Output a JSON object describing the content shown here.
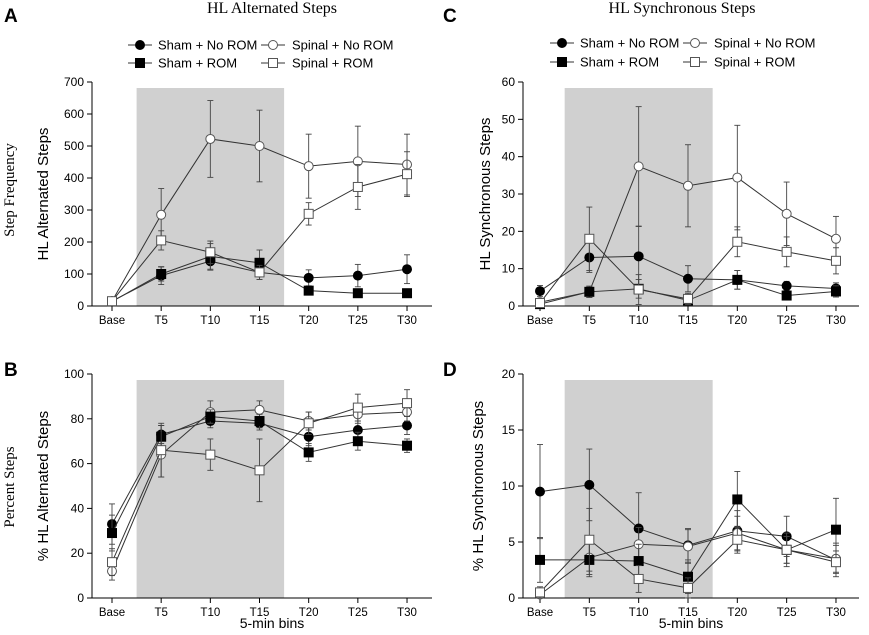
{
  "figure": {
    "column_titles": [
      "HL Alternated Steps",
      "HL Synchronous Steps"
    ],
    "row_labels": [
      "Step Frequency",
      "Percent Steps"
    ],
    "xlabel": "5-min bins"
  },
  "legend": {
    "entries": [
      {
        "name": "Sham + No ROM",
        "marker": "circle",
        "fill": "#000000"
      },
      {
        "name": "Spinal + No ROM",
        "marker": "circle",
        "fill": "#ffffff"
      },
      {
        "name": "Sham + ROM",
        "marker": "square",
        "fill": "#000000"
      },
      {
        "name": "Spinal + ROM",
        "marker": "square",
        "fill": "#ffffff"
      }
    ]
  },
  "colors": {
    "shade": "#d0d0d0",
    "line": "#333333",
    "marker_stroke": "#555555"
  },
  "chart_data": [
    {
      "id": "A",
      "type": "line",
      "panel_label": "A",
      "ylabel": "HL Alternated Steps",
      "xlabel": "",
      "ylim": [
        0,
        700
      ],
      "yticks": [
        0,
        100,
        200,
        300,
        400,
        500,
        600,
        700
      ],
      "categories": [
        "Base",
        "T5",
        "T10",
        "T15",
        "T20",
        "T25",
        "T30"
      ],
      "shaded": [
        "T5",
        "T15"
      ],
      "series": [
        {
          "name": "Sham + No ROM",
          "values": [
            15,
            95,
            140,
            105,
            88,
            95,
            115
          ],
          "errors": [
            5,
            28,
            28,
            22,
            25,
            35,
            45
          ]
        },
        {
          "name": "Spinal + No ROM",
          "values": [
            15,
            285,
            522,
            500,
            437,
            452,
            442
          ],
          "errors": [
            5,
            82,
            120,
            112,
            100,
            110,
            95
          ]
        },
        {
          "name": "Sham + ROM",
          "values": [
            14,
            100,
            155,
            135,
            48,
            40,
            40
          ],
          "errors": [
            4,
            22,
            40,
            40,
            8,
            6,
            6
          ]
        },
        {
          "name": "Spinal + ROM",
          "values": [
            15,
            205,
            168,
            105,
            288,
            372,
            412
          ],
          "errors": [
            5,
            30,
            35,
            22,
            35,
            70,
            70
          ]
        }
      ]
    },
    {
      "id": "C",
      "type": "line",
      "panel_label": "C",
      "ylabel": "HL Synchronous Steps",
      "xlabel": "",
      "ylim": [
        0,
        60
      ],
      "yticks": [
        0,
        10,
        20,
        30,
        40,
        50,
        60
      ],
      "categories": [
        "Base",
        "T5",
        "T10",
        "T15",
        "T20",
        "T25",
        "T30"
      ],
      "shaded": [
        "T5",
        "T15"
      ],
      "series": [
        {
          "name": "Sham + No ROM",
          "values": [
            4,
            13,
            13.3,
            7.3,
            7,
            5.4,
            4.7
          ],
          "errors": [
            1.5,
            4,
            8,
            3.5,
            2.5,
            1.2,
            1.5
          ]
        },
        {
          "name": "Spinal + No ROM",
          "values": [
            1,
            3.8,
            37.4,
            32.2,
            34.4,
            24.7,
            18
          ],
          "errors": [
            0.5,
            1.5,
            16,
            11,
            14,
            8.5,
            6
          ]
        },
        {
          "name": "Sham + ROM",
          "values": [
            0.5,
            3.8,
            4.6,
            1.5,
            7,
            2.8,
            3.9
          ],
          "errors": [
            0.3,
            1.5,
            2.5,
            1,
            2.5,
            1,
            1.5
          ]
        },
        {
          "name": "Spinal + ROM",
          "values": [
            0.8,
            18,
            4.4,
            1.9,
            17.2,
            14.5,
            12.1
          ],
          "errors": [
            0.4,
            8.5,
            4,
            1.5,
            4,
            4,
            3.5
          ]
        }
      ]
    },
    {
      "id": "B",
      "type": "line",
      "panel_label": "B",
      "ylabel": "% HL Alternated Steps",
      "xlabel": "5-min bins",
      "ylim": [
        0,
        100
      ],
      "yticks": [
        0,
        20,
        40,
        60,
        80,
        100
      ],
      "categories": [
        "Base",
        "T5",
        "T10",
        "T15",
        "T20",
        "T25",
        "T30"
      ],
      "shaded": [
        "T5",
        "T15"
      ],
      "series": [
        {
          "name": "Sham + No ROM",
          "values": [
            33,
            73,
            79,
            78,
            72,
            75,
            77
          ],
          "errors": [
            9,
            4,
            3,
            3,
            4,
            4,
            4
          ]
        },
        {
          "name": "Spinal + No ROM",
          "values": [
            12,
            64,
            83,
            84,
            79,
            82,
            83
          ],
          "errors": [
            4,
            10,
            5,
            4,
            4,
            4,
            4
          ]
        },
        {
          "name": "Sham + ROM",
          "values": [
            29,
            72,
            81,
            79,
            65,
            70,
            68
          ],
          "errors": [
            8,
            5,
            3,
            3,
            4,
            4,
            3
          ]
        },
        {
          "name": "Spinal + ROM",
          "values": [
            16,
            66,
            64,
            57,
            78,
            85,
            87
          ],
          "errors": [
            6,
            12,
            7,
            14,
            5,
            6,
            6
          ]
        }
      ]
    },
    {
      "id": "D",
      "type": "line",
      "panel_label": "D",
      "ylabel": "% HL Synchronous Steps",
      "xlabel": "5-min bins",
      "ylim": [
        0,
        20
      ],
      "yticks": [
        0,
        5,
        10,
        15,
        20
      ],
      "categories": [
        "Base",
        "T5",
        "T10",
        "T15",
        "T20",
        "T25",
        "T30"
      ],
      "shaded": [
        "T5",
        "T15"
      ],
      "series": [
        {
          "name": "Sham + No ROM",
          "values": [
            9.5,
            10.1,
            6.2,
            4.7,
            6,
            5.5,
            3.4
          ],
          "errors": [
            4.2,
            3.2,
            3.2,
            1.5,
            1.8,
            1.8,
            1.5
          ]
        },
        {
          "name": "Spinal + No ROM",
          "values": [
            0.3,
            3.6,
            4.8,
            4.6,
            5.8,
            4.3,
            3.5
          ],
          "errors": [
            0.3,
            1.5,
            1.5,
            1.5,
            1.5,
            1.2,
            1.2
          ]
        },
        {
          "name": "Sham + ROM",
          "values": [
            3.4,
            3.4,
            3.3,
            1.9,
            8.8,
            4.3,
            6.1
          ],
          "errors": [
            2,
            1.5,
            1.5,
            1.5,
            2.5,
            1.5,
            2.8
          ]
        },
        {
          "name": "Spinal + ROM",
          "values": [
            0.5,
            5.2,
            1.7,
            0.9,
            5.2,
            4.3,
            3.2
          ],
          "errors": [
            0.5,
            2.8,
            1.2,
            0.9,
            1.2,
            1.2,
            1
          ]
        }
      ]
    }
  ]
}
